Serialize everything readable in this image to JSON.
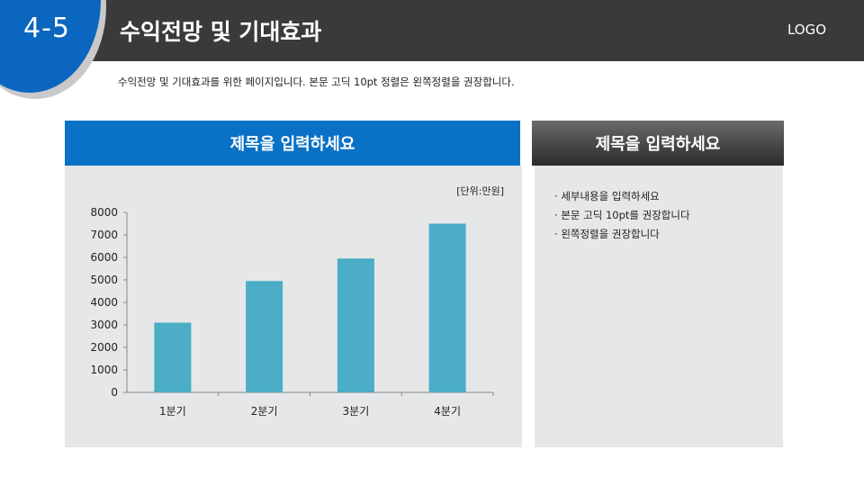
{
  "header": {
    "section_number": "4-5",
    "title": "수익전망 및 기대효과",
    "logo": "LOGO",
    "subtitle": "수익전망 및 기대효과를 위한 페이지입니다. 본문 고딕 10pt 정렬은 왼쪽정렬을 권장합니다."
  },
  "left_panel": {
    "title": "제목을 입력하세요",
    "unit_label": "[단위:만원]"
  },
  "right_panel": {
    "title": "제목을 입력하세요",
    "bullets": [
      "세부내용을 입력하세요",
      "본문 고딕 10pt를 권장합니다",
      "왼쪽정렬을 권장합니다"
    ]
  },
  "colors": {
    "accent_blue": "#0a72c6",
    "bar": "#4badc6",
    "dark_header": "#3a3a3a"
  },
  "chart_data": {
    "type": "bar",
    "categories": [
      "1분기",
      "2분기",
      "3분기",
      "4분기"
    ],
    "values": [
      3100,
      4950,
      5950,
      7500
    ],
    "ylim": [
      0,
      8000
    ],
    "yticks": [
      0,
      1000,
      2000,
      3000,
      4000,
      5000,
      6000,
      7000,
      8000
    ],
    "grid": false,
    "legend": "none",
    "title": "",
    "xlabel": "",
    "ylabel": ""
  }
}
